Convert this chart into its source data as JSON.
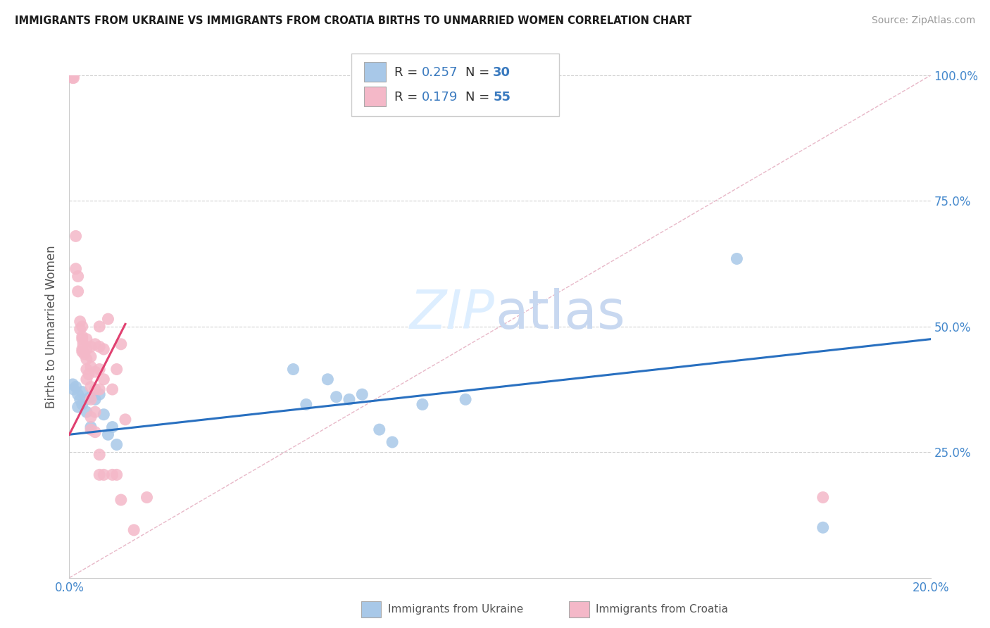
{
  "title": "IMMIGRANTS FROM UKRAINE VS IMMIGRANTS FROM CROATIA BIRTHS TO UNMARRIED WOMEN CORRELATION CHART",
  "source": "Source: ZipAtlas.com",
  "ylabel": "Births to Unmarried Women",
  "legend_label_blue": "Immigrants from Ukraine",
  "legend_label_pink": "Immigrants from Croatia",
  "R_blue": "0.257",
  "N_blue": "30",
  "R_pink": "0.179",
  "N_pink": "55",
  "xmin": 0.0,
  "xmax": 0.2,
  "ymin": 0.0,
  "ymax": 1.0,
  "blue_color": "#a8c8e8",
  "pink_color": "#f4b8c8",
  "blue_line_color": "#2970c0",
  "pink_line_color": "#e04070",
  "diag_color": "#e8b8c8",
  "blue_scatter": [
    [
      0.0008,
      0.385
    ],
    [
      0.001,
      0.375
    ],
    [
      0.0015,
      0.38
    ],
    [
      0.002,
      0.365
    ],
    [
      0.002,
      0.34
    ],
    [
      0.0025,
      0.355
    ],
    [
      0.003,
      0.37
    ],
    [
      0.003,
      0.345
    ],
    [
      0.004,
      0.355
    ],
    [
      0.004,
      0.33
    ],
    [
      0.005,
      0.36
    ],
    [
      0.005,
      0.3
    ],
    [
      0.006,
      0.355
    ],
    [
      0.007,
      0.365
    ],
    [
      0.008,
      0.325
    ],
    [
      0.009,
      0.285
    ],
    [
      0.01,
      0.3
    ],
    [
      0.011,
      0.265
    ],
    [
      0.052,
      0.415
    ],
    [
      0.055,
      0.345
    ],
    [
      0.06,
      0.395
    ],
    [
      0.062,
      0.36
    ],
    [
      0.065,
      0.355
    ],
    [
      0.068,
      0.365
    ],
    [
      0.072,
      0.295
    ],
    [
      0.075,
      0.27
    ],
    [
      0.082,
      0.345
    ],
    [
      0.092,
      0.355
    ],
    [
      0.155,
      0.635
    ],
    [
      0.175,
      0.1
    ]
  ],
  "pink_scatter": [
    [
      0.0006,
      1.0
    ],
    [
      0.0008,
      0.995
    ],
    [
      0.001,
      1.0
    ],
    [
      0.001,
      0.995
    ],
    [
      0.0015,
      0.68
    ],
    [
      0.0015,
      0.615
    ],
    [
      0.002,
      0.6
    ],
    [
      0.002,
      0.57
    ],
    [
      0.0025,
      0.51
    ],
    [
      0.0025,
      0.495
    ],
    [
      0.003,
      0.5
    ],
    [
      0.003,
      0.48
    ],
    [
      0.003,
      0.475
    ],
    [
      0.003,
      0.455
    ],
    [
      0.003,
      0.45
    ],
    [
      0.0032,
      0.465
    ],
    [
      0.0035,
      0.445
    ],
    [
      0.004,
      0.475
    ],
    [
      0.004,
      0.455
    ],
    [
      0.004,
      0.435
    ],
    [
      0.004,
      0.415
    ],
    [
      0.004,
      0.395
    ],
    [
      0.0045,
      0.405
    ],
    [
      0.005,
      0.46
    ],
    [
      0.005,
      0.44
    ],
    [
      0.005,
      0.42
    ],
    [
      0.005,
      0.38
    ],
    [
      0.005,
      0.355
    ],
    [
      0.005,
      0.32
    ],
    [
      0.005,
      0.295
    ],
    [
      0.006,
      0.465
    ],
    [
      0.006,
      0.41
    ],
    [
      0.006,
      0.375
    ],
    [
      0.006,
      0.33
    ],
    [
      0.006,
      0.29
    ],
    [
      0.007,
      0.5
    ],
    [
      0.007,
      0.46
    ],
    [
      0.007,
      0.415
    ],
    [
      0.007,
      0.375
    ],
    [
      0.007,
      0.245
    ],
    [
      0.007,
      0.205
    ],
    [
      0.008,
      0.455
    ],
    [
      0.008,
      0.395
    ],
    [
      0.008,
      0.205
    ],
    [
      0.009,
      0.515
    ],
    [
      0.01,
      0.375
    ],
    [
      0.01,
      0.205
    ],
    [
      0.011,
      0.415
    ],
    [
      0.011,
      0.205
    ],
    [
      0.012,
      0.465
    ],
    [
      0.012,
      0.155
    ],
    [
      0.013,
      0.315
    ],
    [
      0.015,
      0.095
    ],
    [
      0.018,
      0.16
    ],
    [
      0.175,
      0.16
    ]
  ],
  "yticks": [
    0.0,
    0.25,
    0.5,
    0.75,
    1.0
  ],
  "ytick_labels_right": [
    "",
    "25.0%",
    "50.0%",
    "75.0%",
    "100.0%"
  ],
  "xticks": [
    0.0,
    0.05,
    0.1,
    0.15,
    0.2
  ],
  "xtick_labels": [
    "0.0%",
    "",
    "",
    "",
    "20.0%"
  ],
  "background_color": "#ffffff",
  "grid_color": "#d0d0d0"
}
